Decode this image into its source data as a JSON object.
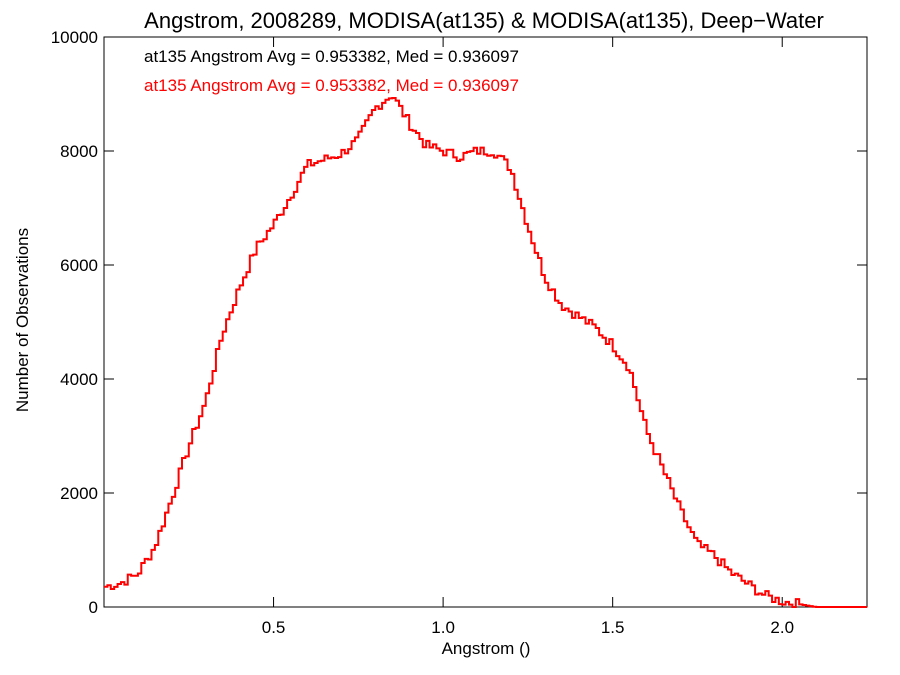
{
  "chart_data": {
    "type": "step-histogram",
    "title": "Angstrom, 2008289, MODISA(at135) & MODISA(at135), Deep−Water",
    "xlabel": "Angstrom ()",
    "ylabel": "Number of Observations",
    "xlim": [
      0.0,
      2.25
    ],
    "ylim": [
      0,
      10000
    ],
    "xticks": [
      0.5,
      1.0,
      1.5,
      2.0
    ],
    "xtick_labels": [
      "0.5",
      "1.0",
      "1.5",
      "2.0"
    ],
    "yticks": [
      0,
      2000,
      4000,
      6000,
      8000,
      10000
    ],
    "ytick_labels": [
      "0",
      "2000",
      "4000",
      "6000",
      "8000",
      "10000"
    ],
    "annotations": [
      {
        "text": "at135 Angstrom Avg = 0.953382, Med = 0.936097",
        "color": "#000000"
      },
      {
        "text": "at135 Angstrom Avg = 0.953382, Med = 0.936097",
        "color": "#ff0000"
      }
    ],
    "series": [
      {
        "color": "#ff0000",
        "bin_width": 0.01,
        "x": [
          0.0,
          0.05,
          0.1,
          0.15,
          0.2,
          0.25,
          0.3,
          0.35,
          0.4,
          0.45,
          0.5,
          0.55,
          0.6,
          0.65,
          0.7,
          0.75,
          0.8,
          0.85,
          0.9,
          0.95,
          1.0,
          1.05,
          1.1,
          1.15,
          1.2,
          1.25,
          1.3,
          1.35,
          1.4,
          1.45,
          1.5,
          1.55,
          1.6,
          1.65,
          1.7,
          1.75,
          1.8,
          1.85,
          1.9,
          1.95,
          2.0,
          2.05,
          2.1,
          2.15,
          2.2,
          2.25
        ],
        "y": [
          350,
          420,
          580,
          1050,
          1900,
          2800,
          3600,
          4800,
          5600,
          6300,
          6700,
          7200,
          7750,
          7850,
          7950,
          8200,
          8750,
          9000,
          8500,
          8100,
          8000,
          7900,
          8000,
          8000,
          7700,
          6700,
          5800,
          5300,
          5100,
          4900,
          4600,
          4200,
          3100,
          2400,
          1700,
          1100,
          900,
          600,
          400,
          200,
          100,
          50,
          0,
          0,
          0,
          0
        ]
      }
    ]
  }
}
